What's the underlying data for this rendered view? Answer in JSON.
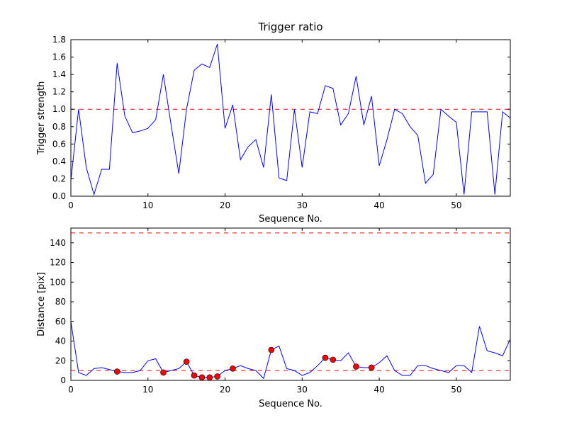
{
  "figure": {
    "background_color": "#ffffff",
    "text_color": "#000000"
  },
  "chart_data": [
    {
      "type": "line",
      "title": "Trigger ratio",
      "xlabel": "Sequence No.",
      "ylabel": "Trigger strength",
      "xlim": [
        0,
        57
      ],
      "ylim": [
        0,
        1.8
      ],
      "grid": false,
      "legend": "none",
      "line_color": "#0000ff",
      "xticks": {
        "values": [
          0,
          10,
          20,
          30,
          40,
          50
        ],
        "labels": [
          "0",
          "10",
          "20",
          "30",
          "40",
          "50"
        ]
      },
      "yticks": {
        "values": [
          0,
          0.2,
          0.4,
          0.6,
          0.8,
          1.0,
          1.2,
          1.4,
          1.6,
          1.8
        ],
        "labels": [
          "0.0",
          "0.2",
          "0.4",
          "0.6",
          "0.8",
          "1.0",
          "1.2",
          "1.4",
          "1.6",
          "1.8"
        ]
      },
      "thresholds": [
        {
          "y": 1.0,
          "color": "#ff0000",
          "style": "dashed"
        }
      ],
      "x": [
        0,
        1,
        2,
        3,
        4,
        5,
        6,
        7,
        8,
        9,
        10,
        11,
        12,
        13,
        14,
        15,
        16,
        17,
        18,
        19,
        20,
        21,
        22,
        23,
        24,
        25,
        26,
        27,
        28,
        29,
        30,
        31,
        32,
        33,
        34,
        35,
        36,
        37,
        38,
        39,
        40,
        41,
        42,
        43,
        44,
        45,
        46,
        47,
        48,
        49,
        50,
        51,
        52,
        53,
        54,
        55,
        56,
        57
      ],
      "y": [
        0.18,
        1.0,
        0.33,
        0.02,
        0.31,
        0.31,
        1.53,
        0.92,
        0.73,
        0.75,
        0.78,
        0.88,
        1.4,
        0.82,
        0.26,
        1.0,
        1.45,
        1.52,
        1.48,
        1.75,
        0.78,
        1.05,
        0.42,
        0.57,
        0.65,
        0.33,
        1.17,
        0.21,
        0.18,
        1.0,
        0.33,
        0.97,
        0.95,
        1.27,
        1.24,
        0.82,
        0.95,
        1.38,
        0.82,
        1.15,
        0.35,
        0.65,
        1.0,
        0.95,
        0.8,
        0.7,
        0.15,
        0.25,
        1.0,
        0.92,
        0.85,
        0.02,
        0.97,
        0.97,
        0.97,
        0.02,
        0.97,
        0.9
      ]
    },
    {
      "type": "line",
      "title": "",
      "xlabel": "Sequence No.",
      "ylabel": "Distance [pix]",
      "xlim": [
        0,
        57
      ],
      "ylim": [
        0,
        155
      ],
      "grid": false,
      "legend": "none",
      "line_color": "#0000ff",
      "xticks": {
        "values": [
          0,
          10,
          20,
          30,
          40,
          50
        ],
        "labels": [
          "0",
          "10",
          "20",
          "30",
          "40",
          "50"
        ]
      },
      "yticks": {
        "values": [
          0,
          20,
          40,
          60,
          80,
          100,
          120,
          140
        ],
        "labels": [
          "0",
          "20",
          "40",
          "60",
          "80",
          "100",
          "120",
          "140"
        ]
      },
      "thresholds": [
        {
          "y": 150,
          "color": "#ff0000",
          "style": "dashed"
        },
        {
          "y": 10,
          "color": "#ff0000",
          "style": "dashed"
        }
      ],
      "x": [
        0,
        1,
        2,
        3,
        4,
        5,
        6,
        7,
        8,
        9,
        10,
        11,
        12,
        13,
        14,
        15,
        16,
        17,
        18,
        19,
        20,
        21,
        22,
        23,
        24,
        25,
        26,
        27,
        28,
        29,
        30,
        31,
        32,
        33,
        34,
        35,
        36,
        37,
        38,
        39,
        40,
        41,
        42,
        43,
        44,
        45,
        46,
        47,
        48,
        49,
        50,
        51,
        52,
        53,
        54,
        55,
        56,
        57
      ],
      "y": [
        60,
        8,
        5,
        12,
        13,
        11,
        9,
        8,
        8,
        10,
        20,
        22,
        8,
        10,
        12,
        19,
        5,
        3,
        3,
        4,
        10,
        12,
        15,
        12,
        10,
        2,
        31,
        35,
        12,
        10,
        5,
        8,
        15,
        23,
        21,
        20,
        28,
        14,
        13,
        13,
        18,
        25,
        10,
        5,
        5,
        15,
        15,
        12,
        10,
        8,
        15,
        15,
        8,
        55,
        30,
        28,
        25,
        42
      ],
      "markers": {
        "shape": "circle",
        "color": "#ff0000",
        "x": [
          6,
          12,
          15,
          16,
          17,
          18,
          19,
          21,
          26,
          33,
          34,
          37,
          39
        ],
        "y": [
          9,
          8,
          19,
          5,
          3,
          3,
          4,
          12,
          31,
          23,
          21,
          14,
          13
        ]
      }
    }
  ]
}
